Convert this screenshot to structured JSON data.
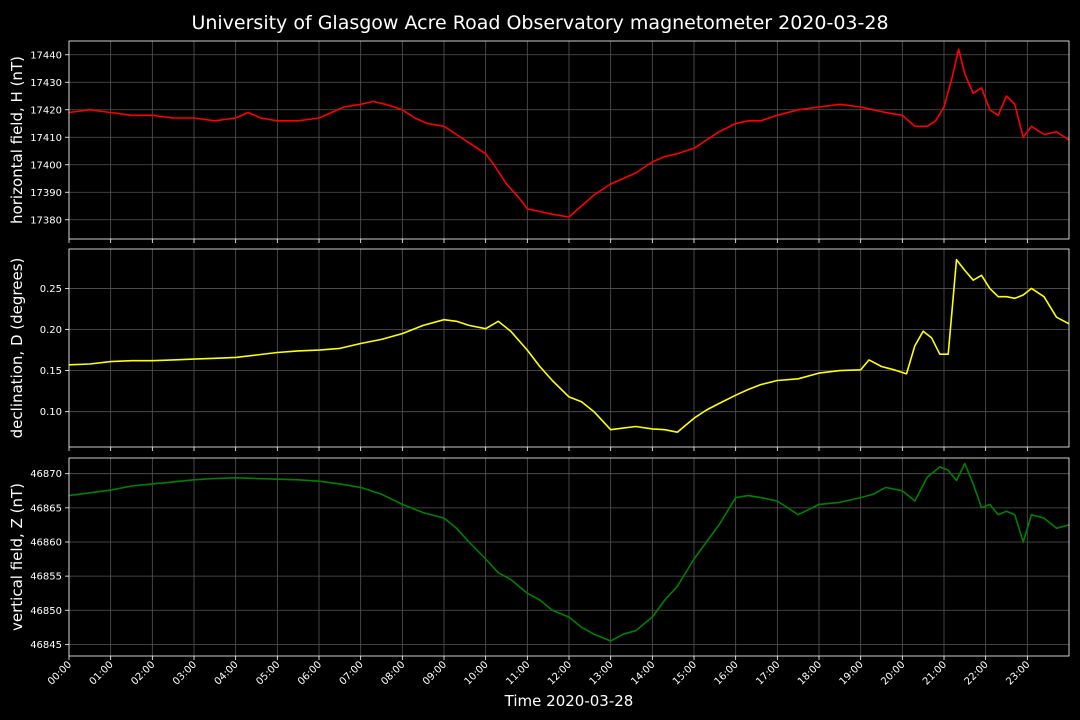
{
  "title": "University of Glasgow Acre Road Observatory magnetometer 2020-03-28",
  "xlabel": "Time 2020-03-28",
  "x_ticks": [
    "00:00",
    "01:00",
    "02:00",
    "03:00",
    "04:00",
    "05:00",
    "06:00",
    "07:00",
    "08:00",
    "09:00",
    "10:00",
    "11:00",
    "12:00",
    "13:00",
    "14:00",
    "15:00",
    "16:00",
    "17:00",
    "18:00",
    "19:00",
    "20:00",
    "21:00",
    "22:00",
    "23:00"
  ],
  "chart_data": [
    {
      "type": "line",
      "ylabel": "horizontal field, H (nT)",
      "color": "#ff0000",
      "xlim": [
        0,
        24
      ],
      "ylim": [
        17373,
        17445
      ],
      "yticks": [
        17380,
        17390,
        17400,
        17410,
        17420,
        17430,
        17440
      ],
      "grid": true,
      "series": [
        {
          "x": [
            0,
            0.5,
            1,
            1.5,
            2,
            2.5,
            3,
            3.5,
            4,
            4.3,
            4.6,
            5,
            5.5,
            6,
            6.3,
            6.6,
            7,
            7.3,
            7.6,
            8,
            8.3,
            8.6,
            9,
            9.3,
            9.6,
            10,
            10.2,
            10.5,
            10.8,
            11,
            11.3,
            11.6,
            12,
            12.3,
            12.6,
            13,
            13.3,
            13.6,
            14,
            14.3,
            14.6,
            15,
            15.3,
            15.6,
            16,
            16.3,
            16.6,
            17,
            17.5,
            18,
            18.5,
            19,
            19.3,
            19.6,
            20,
            20.3,
            20.6,
            20.8,
            21,
            21.2,
            21.35,
            21.5,
            21.7,
            21.9,
            22.1,
            22.3,
            22.5,
            22.7,
            22.9,
            23.1,
            23.4,
            23.7,
            24
          ],
          "y": [
            17419,
            17420,
            17419,
            17418,
            17418,
            17417,
            17417,
            17416,
            17417,
            17419,
            17417,
            17416,
            17416,
            17417,
            17419,
            17421,
            17422,
            17423,
            17422,
            17420,
            17417,
            17415,
            17414,
            17411,
            17408,
            17404,
            17400,
            17393,
            17388,
            17384,
            17383,
            17382,
            17381,
            17385,
            17389,
            17393,
            17395,
            17397,
            17401,
            17403,
            17404,
            17406,
            17409,
            17412,
            17415,
            17416,
            17416,
            17418,
            17420,
            17421,
            17422,
            17421,
            17420,
            17419,
            17418,
            17414,
            17414,
            17416,
            17421,
            17432,
            17442,
            17433,
            17426,
            17428,
            17420,
            17418,
            17425,
            17422,
            17410,
            17414,
            17411,
            17412,
            17409
          ]
        }
      ]
    },
    {
      "type": "line",
      "ylabel": "declination, D (degrees)",
      "color": "#ffff00",
      "xlim": [
        0,
        24
      ],
      "ylim": [
        0.057,
        0.298
      ],
      "yticks": [
        0.1,
        0.15,
        0.2,
        0.25
      ],
      "grid": true,
      "series": [
        {
          "x": [
            0,
            0.5,
            1,
            1.5,
            2,
            2.5,
            3,
            3.5,
            4,
            4.5,
            5,
            5.5,
            6,
            6.5,
            7,
            7.5,
            8,
            8.5,
            9,
            9.3,
            9.6,
            10,
            10.3,
            10.6,
            11,
            11.3,
            11.6,
            12,
            12.3,
            12.6,
            13,
            13.3,
            13.6,
            14,
            14.3,
            14.6,
            15,
            15.3,
            15.6,
            16,
            16.3,
            16.6,
            17,
            17.5,
            18,
            18.5,
            19,
            19.2,
            19.5,
            19.8,
            20.1,
            20.3,
            20.5,
            20.7,
            20.9,
            21.1,
            21.3,
            21.5,
            21.7,
            21.9,
            22.1,
            22.3,
            22.5,
            22.7,
            22.9,
            23.1,
            23.4,
            23.7,
            24
          ],
          "y": [
            0.157,
            0.158,
            0.161,
            0.162,
            0.162,
            0.163,
            0.164,
            0.165,
            0.166,
            0.169,
            0.172,
            0.174,
            0.175,
            0.177,
            0.183,
            0.188,
            0.195,
            0.205,
            0.212,
            0.21,
            0.205,
            0.201,
            0.21,
            0.198,
            0.175,
            0.155,
            0.138,
            0.118,
            0.112,
            0.1,
            0.078,
            0.08,
            0.082,
            0.079,
            0.078,
            0.075,
            0.092,
            0.102,
            0.11,
            0.12,
            0.127,
            0.133,
            0.138,
            0.14,
            0.147,
            0.15,
            0.151,
            0.163,
            0.155,
            0.151,
            0.146,
            0.18,
            0.198,
            0.19,
            0.17,
            0.17,
            0.285,
            0.272,
            0.26,
            0.266,
            0.25,
            0.24,
            0.24,
            0.238,
            0.242,
            0.25,
            0.24,
            0.215,
            0.207
          ]
        }
      ]
    },
    {
      "type": "line",
      "ylabel": "vertical field, Z (nT)",
      "color": "#008000",
      "xlim": [
        0,
        24
      ],
      "ylim": [
        46843.3,
        46872.3
      ],
      "yticks": [
        46845,
        46850,
        46855,
        46860,
        46865,
        46870
      ],
      "grid": true,
      "series": [
        {
          "x": [
            0,
            0.5,
            1,
            1.5,
            2,
            2.5,
            3,
            3.5,
            4,
            4.5,
            5,
            5.5,
            6,
            6.5,
            7,
            7.5,
            8,
            8.5,
            9,
            9.3,
            9.6,
            10,
            10.3,
            10.6,
            11,
            11.3,
            11.6,
            12,
            12.3,
            12.6,
            13,
            13.3,
            13.6,
            14,
            14.3,
            14.6,
            15,
            15.3,
            15.6,
            16,
            16.3,
            16.6,
            17,
            17.5,
            18,
            18.5,
            19,
            19.3,
            19.6,
            20,
            20.3,
            20.6,
            20.9,
            21.1,
            21.3,
            21.5,
            21.7,
            21.9,
            22.1,
            22.3,
            22.5,
            22.7,
            22.9,
            23.1,
            23.4,
            23.7,
            24
          ],
          "y": [
            46866.8,
            46867.2,
            46867.6,
            46868.2,
            46868.5,
            46868.8,
            46869.1,
            46869.3,
            46869.4,
            46869.3,
            46869.2,
            46869.1,
            46868.9,
            46868.5,
            46868.0,
            46867.0,
            46865.5,
            46864.3,
            46863.5,
            46862.0,
            46860.0,
            46857.5,
            46855.5,
            46854.5,
            46852.5,
            46851.5,
            46850.0,
            46849.0,
            46847.5,
            46846.5,
            46845.5,
            46846.5,
            46847.0,
            46849.0,
            46851.5,
            46853.5,
            46857.5,
            46860.0,
            46862.5,
            46866.5,
            46866.8,
            46866.5,
            46866.0,
            46864.0,
            46865.5,
            46865.8,
            46866.5,
            46867.0,
            46868.0,
            46867.5,
            46866.0,
            46869.5,
            46871.0,
            46870.5,
            46869.0,
            46871.5,
            46868.5,
            46865.0,
            46865.5,
            46864.0,
            46864.5,
            46864.0,
            46860.0,
            46864.0,
            46863.5,
            46862.0,
            46862.5
          ]
        }
      ]
    }
  ]
}
